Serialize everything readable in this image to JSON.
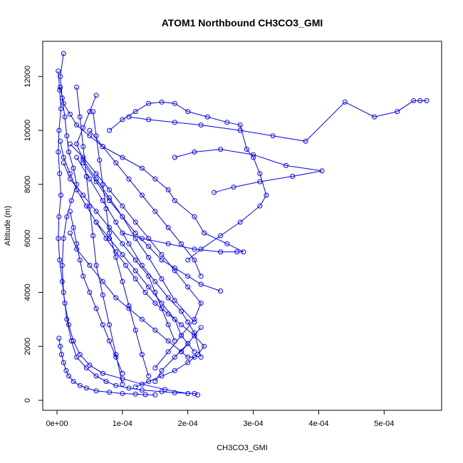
{
  "chart_data": {
    "type": "line",
    "title": "ATOM1 Northbound CH3CO3_GMI",
    "xlabel": "CH3CO3_GMI",
    "ylabel": "Altitude (m)",
    "xlim": [
      0,
      0.000565
    ],
    "ylim": [
      0,
      12800
    ],
    "x_ticks": [
      0,
      0.0001,
      0.0002,
      0.0003,
      0.0004,
      0.0005
    ],
    "x_tick_labels": [
      "0e+00",
      "1e-04",
      "2e-04",
      "3e-04",
      "4e-04",
      "5e-04"
    ],
    "y_ticks": [
      0,
      2000,
      4000,
      6000,
      8000,
      10000,
      12000
    ],
    "y_tick_labels": [
      "0",
      "2000",
      "4000",
      "6000",
      "8000",
      "10000",
      "12000"
    ],
    "grid": false,
    "legend": "none",
    "series_color": "#0000ff",
    "marker": "open-circle",
    "series": [
      {
        "x": [
          1e-05,
          5e-06,
          8e-06,
          1.2e-05,
          1.5e-05,
          1.8e-05,
          2.5e-05,
          3e-05,
          2.2e-05,
          1.5e-05,
          1e-05,
          8e-06,
          1e-05,
          1.5e-05,
          2.2e-05,
          3e-05,
          4.5e-05,
          6e-05,
          7.5e-05,
          9e-05,
          0.00011,
          0.00013,
          0.00016,
          0.00018,
          0.00021,
          0.000215
        ],
        "y": [
          12850,
          12000,
          11200,
          10500,
          9800,
          9200,
          8600,
          8000,
          7400,
          6800,
          6000,
          5000,
          4000,
          3000,
          2200,
          1600,
          1200,
          900,
          700,
          550,
          450,
          380,
          320,
          280,
          250,
          200
        ]
      },
      {
        "x": [
          5e-06,
          1e-05,
          2e-05,
          3e-05,
          5e-05,
          7e-05,
          0.0001,
          0.00013,
          0.00015,
          0.00017,
          0.00018,
          0.00021,
          0.000225,
          0.00026,
          0.000285,
          0.000275,
          0.00025,
          0.00021,
          0.00017,
          0.00013,
          0.0001
        ],
        "y": [
          11600,
          11000,
          10600,
          10200,
          9800,
          9400,
          9000,
          8600,
          8200,
          7800,
          7400,
          6800,
          6200,
          5800,
          5500,
          5500,
          5500,
          5600,
          5800,
          6000,
          6200
        ]
      },
      {
        "x": [
          8e-05,
          0.0001,
          0.00012,
          0.00014,
          0.00016,
          0.00018,
          0.0002,
          0.00023,
          0.00026,
          0.00028,
          0.00029,
          0.0003,
          0.00031,
          0.00032,
          0.00031,
          0.00028,
          0.00025,
          0.00022,
          0.0002
        ],
        "y": [
          10000,
          10400,
          10700,
          11000,
          11050,
          11000,
          10700,
          10500,
          10300,
          10200,
          9300,
          9000,
          8400,
          7600,
          7200,
          6600,
          6100,
          5600,
          5200
        ]
      },
      {
        "x": [
          0.00011,
          0.00014,
          0.00018,
          0.00022,
          0.00028,
          0.00033,
          0.00038,
          0.00044,
          0.000485,
          0.00052,
          0.000545,
          0.000555,
          0.000565
        ],
        "y": [
          10500,
          10400,
          10300,
          10200,
          10000,
          9800,
          9600,
          11050,
          10500,
          10700,
          11100,
          11100,
          11100
        ]
      },
      {
        "x": [
          0.00018,
          0.00021,
          0.00025,
          0.0003,
          0.00035,
          0.000405,
          0.00036,
          0.00031,
          0.00027,
          0.00024
        ],
        "y": [
          9000,
          9200,
          9300,
          9100,
          8700,
          8500,
          8300,
          8100,
          7900,
          7700
        ]
      },
      {
        "x": [
          2e-05,
          4e-05,
          6e-05,
          8e-05,
          0.0001,
          0.00012,
          0.00014,
          0.00016,
          0.00018,
          0.0002,
          0.00022,
          0.00021,
          0.00019,
          0.00017,
          0.00015
        ],
        "y": [
          9500,
          9000,
          8400,
          7800,
          7200,
          6600,
          6000,
          5400,
          4800,
          4200,
          3600,
          3000,
          2400,
          1800,
          1200
        ]
      },
      {
        "x": [
          2e-06,
          4e-06,
          6e-06,
          3e-06,
          2e-06,
          4e-06,
          6e-06,
          3e-06,
          2e-06,
          4e-06,
          8e-06,
          1.2e-05,
          1.8e-05,
          2.5e-05,
          3.5e-05,
          5e-05,
          7e-05,
          0.0001,
          0.00013,
          0.000165,
          0.0002
        ],
        "y": [
          12200,
          11500,
          10800,
          10000,
          9200,
          8400,
          7600,
          6800,
          6000,
          5200,
          4400,
          3600,
          2800,
          2200,
          1700,
          1300,
          1000,
          800,
          600,
          400,
          250
        ]
      },
      {
        "x": [
          3e-05,
          5e-05,
          7e-05,
          9e-05,
          0.00011,
          0.00013,
          0.00015,
          0.00017,
          0.00019,
          0.0002,
          0.00021,
          0.00022
        ],
        "y": [
          9000,
          8200,
          7400,
          6600,
          5800,
          5000,
          4400,
          3800,
          3300,
          2900,
          2500,
          1600
        ]
      },
      {
        "x": [
          6e-05,
          5e-05,
          4e-05,
          3e-05,
          4e-05,
          6e-05,
          8e-05,
          0.0001,
          0.00012,
          0.00014,
          0.00016,
          0.00018,
          0.00021
        ],
        "y": [
          11300,
          10700,
          10100,
          9500,
          8900,
          8200,
          7500,
          6800,
          6000,
          5300,
          4500,
          3700,
          2900
        ]
      },
      {
        "x": [
          1e-05,
          2e-05,
          4e-05,
          6e-05,
          8e-05,
          0.0001,
          0.00012,
          0.00014,
          0.00015,
          0.00016,
          0.00017,
          0.00018
        ],
        "y": [
          8800,
          8200,
          7600,
          7000,
          6400,
          5800,
          5200,
          4600,
          4000,
          3400,
          2800,
          2200
        ]
      },
      {
        "x": [
          3e-05,
          3.5e-05,
          4e-05,
          4.5e-05,
          5e-05,
          5.5e-05,
          6e-05,
          7e-05,
          8e-05,
          9e-05,
          0.0001
        ],
        "y": [
          11600,
          10500,
          9400,
          8300,
          7200,
          6100,
          5000,
          3900,
          2800,
          1700,
          600
        ]
      },
      {
        "x": [
          2e-05,
          3e-05,
          5e-05,
          7e-05,
          9e-05,
          0.00011,
          0.00013,
          0.00015,
          0.00017,
          0.00019,
          0.0002,
          0.00021
        ],
        "y": [
          6200,
          5600,
          5000,
          4400,
          3800,
          3400,
          3000,
          2600,
          2200,
          1800,
          1600,
          1600
        ]
      },
      {
        "x": [
          5e-06,
          1e-05,
          2e-05,
          3e-05,
          4.5e-05,
          6e-05,
          7.5e-05,
          9e-05,
          0.000105,
          0.00012,
          0.000135,
          0.00015,
          0.00017,
          0.00019,
          0.00021,
          0.000225,
          0.000215,
          0.0002,
          0.00018,
          0.00016,
          0.00014,
          0.00012
        ],
        "y": [
          9600,
          9000,
          8400,
          7800,
          7200,
          6600,
          6000,
          5500,
          5000,
          4500,
          4000,
          3600,
          3200,
          2800,
          2400,
          2000,
          1700,
          1400,
          1100,
          900,
          700,
          500
        ]
      },
      {
        "x": [
          4e-05,
          6e-05,
          8e-05,
          0.0001,
          0.00012,
          0.00014,
          0.00016,
          0.00018,
          0.0002,
          0.00022,
          0.00025
        ],
        "y": [
          8800,
          8100,
          7400,
          6800,
          6200,
          5700,
          5200,
          4900,
          4600,
          4300,
          4050
        ]
      },
      {
        "x": [
          2e-05,
          2.5e-05,
          3e-05,
          3.5e-05,
          4e-05,
          5e-05,
          6e-05,
          7e-05,
          8e-05,
          9e-05,
          0.0001
        ],
        "y": [
          7000,
          6400,
          5800,
          5200,
          4600,
          4000,
          3400,
          2800,
          2200,
          1600,
          1000
        ]
      },
      {
        "x": [
          5e-05,
          7e-05,
          9e-05,
          0.00011,
          0.00013,
          0.00015,
          0.00017,
          0.00019,
          0.00021,
          0.00022
        ],
        "y": [
          10000,
          9400,
          8800,
          8200,
          7600,
          7000,
          6400,
          5800,
          5200,
          4600
        ]
      },
      {
        "x": [
          3e-06,
          5e-06,
          7e-06,
          1e-05,
          1.4e-05,
          1.8e-05,
          2.5e-05,
          3.5e-05,
          4.5e-05,
          6e-05,
          8e-05,
          0.0001,
          0.00012,
          0.000135,
          0.00015
        ],
        "y": [
          2300,
          2000,
          1700,
          1400,
          1100,
          900,
          700,
          550,
          450,
          350,
          300,
          250,
          230,
          210,
          200
        ]
      },
      {
        "x": [
          6e-05,
          8e-05,
          0.0001,
          0.00012,
          0.00014,
          0.00016,
          0.00018,
          0.00019,
          0.00021
        ],
        "y": [
          6600,
          6000,
          5400,
          4800,
          4200,
          3600,
          3000,
          2400,
          1800
        ]
      },
      {
        "x": [
          5.5e-05,
          6e-05,
          6.5e-05,
          7e-05,
          7.5e-05,
          8e-05,
          9e-05,
          0.0001,
          0.00011,
          0.00012,
          0.00013,
          0.00014
        ],
        "y": [
          10700,
          9800,
          8900,
          8000,
          7100,
          6200,
          5300,
          4400,
          3500,
          2600,
          1700,
          900
        ]
      },
      {
        "x": [
          0.00015,
          0.00016,
          0.00018,
          0.0002,
          0.00022,
          0.00021,
          0.0002,
          0.00019
        ],
        "y": [
          700,
          1100,
          1600,
          2100,
          2700,
          2400,
          2100,
          1800
        ]
      }
    ]
  }
}
